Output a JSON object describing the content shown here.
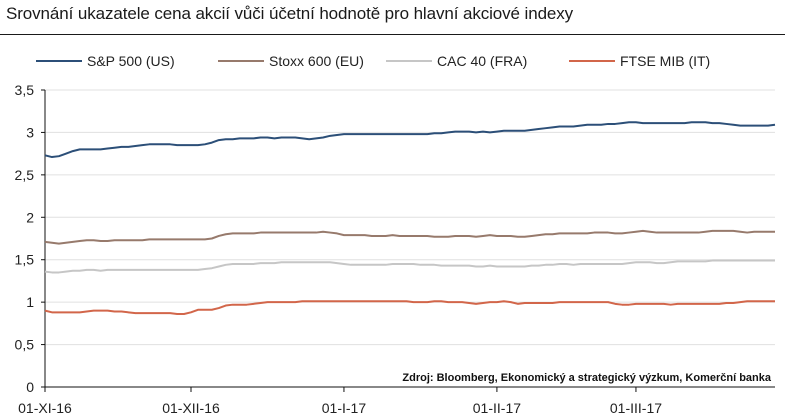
{
  "chart_data": {
    "type": "line",
    "title": "Srovnání ukazatele cena akcií vůči účetní hodnotě pro hlavní akciové indexy",
    "source": "Zdroj: Bloomberg, Ekonomický a strategický výzkum, Komerční banka",
    "ylim": [
      0,
      3.5
    ],
    "yticks": [
      "0",
      "0,5",
      "1",
      "1,5",
      "2",
      "2,5",
      "3",
      "3,5"
    ],
    "ytick_values": [
      0,
      0.5,
      1,
      1.5,
      2,
      2.5,
      3,
      3.5
    ],
    "xticks": [
      "01-XI-16",
      "01-XII-16",
      "01-I-17",
      "01-II-17",
      "01-III-17"
    ],
    "xtick_index": [
      0,
      21,
      43,
      65,
      85
    ],
    "n_points": 106,
    "legend_position": "top",
    "series": [
      {
        "name": "S&P 500 (US)",
        "color": "#2c4f78",
        "values": [
          2.73,
          2.71,
          2.72,
          2.75,
          2.78,
          2.8,
          2.8,
          2.8,
          2.8,
          2.81,
          2.82,
          2.83,
          2.83,
          2.84,
          2.85,
          2.86,
          2.86,
          2.86,
          2.86,
          2.85,
          2.85,
          2.85,
          2.85,
          2.86,
          2.88,
          2.91,
          2.92,
          2.92,
          2.93,
          2.93,
          2.93,
          2.94,
          2.94,
          2.93,
          2.94,
          2.94,
          2.94,
          2.93,
          2.92,
          2.93,
          2.94,
          2.96,
          2.97,
          2.98,
          2.98,
          2.98,
          2.98,
          2.98,
          2.98,
          2.98,
          2.98,
          2.98,
          2.98,
          2.98,
          2.98,
          2.98,
          2.99,
          2.99,
          3.0,
          3.01,
          3.01,
          3.01,
          3.0,
          3.01,
          3.0,
          3.01,
          3.02,
          3.02,
          3.02,
          3.02,
          3.03,
          3.04,
          3.05,
          3.06,
          3.07,
          3.07,
          3.07,
          3.08,
          3.09,
          3.09,
          3.09,
          3.1,
          3.1,
          3.11,
          3.12,
          3.12,
          3.11,
          3.11,
          3.11,
          3.11,
          3.11,
          3.11,
          3.11,
          3.12,
          3.12,
          3.12,
          3.11,
          3.11,
          3.1,
          3.09,
          3.08,
          3.08,
          3.08,
          3.08,
          3.08,
          3.09
        ]
      },
      {
        "name": "Stoxx 600 (EU)",
        "color": "#977a6c",
        "values": [
          1.71,
          1.7,
          1.69,
          1.7,
          1.71,
          1.72,
          1.73,
          1.73,
          1.72,
          1.72,
          1.73,
          1.73,
          1.73,
          1.73,
          1.73,
          1.74,
          1.74,
          1.74,
          1.74,
          1.74,
          1.74,
          1.74,
          1.74,
          1.74,
          1.75,
          1.78,
          1.8,
          1.81,
          1.81,
          1.81,
          1.81,
          1.82,
          1.82,
          1.82,
          1.82,
          1.82,
          1.82,
          1.82,
          1.82,
          1.82,
          1.83,
          1.82,
          1.81,
          1.79,
          1.79,
          1.79,
          1.79,
          1.78,
          1.78,
          1.78,
          1.79,
          1.78,
          1.78,
          1.78,
          1.78,
          1.78,
          1.77,
          1.77,
          1.77,
          1.78,
          1.78,
          1.78,
          1.77,
          1.78,
          1.79,
          1.78,
          1.78,
          1.78,
          1.77,
          1.77,
          1.78,
          1.79,
          1.8,
          1.8,
          1.81,
          1.81,
          1.81,
          1.81,
          1.81,
          1.82,
          1.82,
          1.82,
          1.81,
          1.81,
          1.82,
          1.83,
          1.84,
          1.83,
          1.82,
          1.82,
          1.82,
          1.82,
          1.82,
          1.82,
          1.82,
          1.83,
          1.84,
          1.84,
          1.84,
          1.84,
          1.83,
          1.82,
          1.83,
          1.83,
          1.83,
          1.83
        ]
      },
      {
        "name": "CAC 40 (FRA)",
        "color": "#c6c6c6",
        "values": [
          1.36,
          1.35,
          1.35,
          1.36,
          1.37,
          1.37,
          1.38,
          1.38,
          1.37,
          1.38,
          1.38,
          1.38,
          1.38,
          1.38,
          1.38,
          1.38,
          1.38,
          1.38,
          1.38,
          1.38,
          1.38,
          1.38,
          1.38,
          1.39,
          1.4,
          1.42,
          1.44,
          1.45,
          1.45,
          1.45,
          1.45,
          1.46,
          1.46,
          1.46,
          1.47,
          1.47,
          1.47,
          1.47,
          1.47,
          1.47,
          1.47,
          1.47,
          1.46,
          1.45,
          1.44,
          1.44,
          1.44,
          1.44,
          1.44,
          1.44,
          1.45,
          1.45,
          1.45,
          1.45,
          1.44,
          1.44,
          1.44,
          1.43,
          1.43,
          1.43,
          1.43,
          1.43,
          1.42,
          1.42,
          1.43,
          1.42,
          1.42,
          1.42,
          1.42,
          1.42,
          1.43,
          1.43,
          1.44,
          1.44,
          1.45,
          1.45,
          1.44,
          1.45,
          1.45,
          1.45,
          1.45,
          1.45,
          1.45,
          1.45,
          1.46,
          1.47,
          1.47,
          1.47,
          1.46,
          1.46,
          1.47,
          1.48,
          1.48,
          1.48,
          1.48,
          1.48,
          1.49,
          1.49,
          1.49,
          1.49,
          1.49,
          1.49,
          1.49,
          1.49,
          1.49,
          1.49
        ]
      },
      {
        "name": "FTSE MIB (IT)",
        "color": "#d2664a",
        "values": [
          0.9,
          0.88,
          0.88,
          0.88,
          0.88,
          0.88,
          0.89,
          0.9,
          0.9,
          0.9,
          0.89,
          0.89,
          0.88,
          0.87,
          0.87,
          0.87,
          0.87,
          0.87,
          0.87,
          0.86,
          0.86,
          0.88,
          0.91,
          0.91,
          0.91,
          0.93,
          0.96,
          0.97,
          0.97,
          0.97,
          0.98,
          0.99,
          1.0,
          1.0,
          1.0,
          1.0,
          1.0,
          1.01,
          1.01,
          1.01,
          1.01,
          1.01,
          1.01,
          1.01,
          1.01,
          1.01,
          1.01,
          1.01,
          1.01,
          1.01,
          1.01,
          1.01,
          1.01,
          1.0,
          1.0,
          1.0,
          1.01,
          1.01,
          1.0,
          1.0,
          1.0,
          0.99,
          0.98,
          0.99,
          1.0,
          1.0,
          1.01,
          1.0,
          0.98,
          0.99,
          0.99,
          0.99,
          0.99,
          0.99,
          1.0,
          1.0,
          1.0,
          1.0,
          1.0,
          1.0,
          1.0,
          1.0,
          0.98,
          0.97,
          0.97,
          0.98,
          0.98,
          0.98,
          0.98,
          0.98,
          0.97,
          0.98,
          0.98,
          0.98,
          0.98,
          0.98,
          0.98,
          0.98,
          0.99,
          0.99,
          1.0,
          1.01,
          1.01,
          1.01,
          1.01,
          1.01
        ]
      }
    ]
  }
}
